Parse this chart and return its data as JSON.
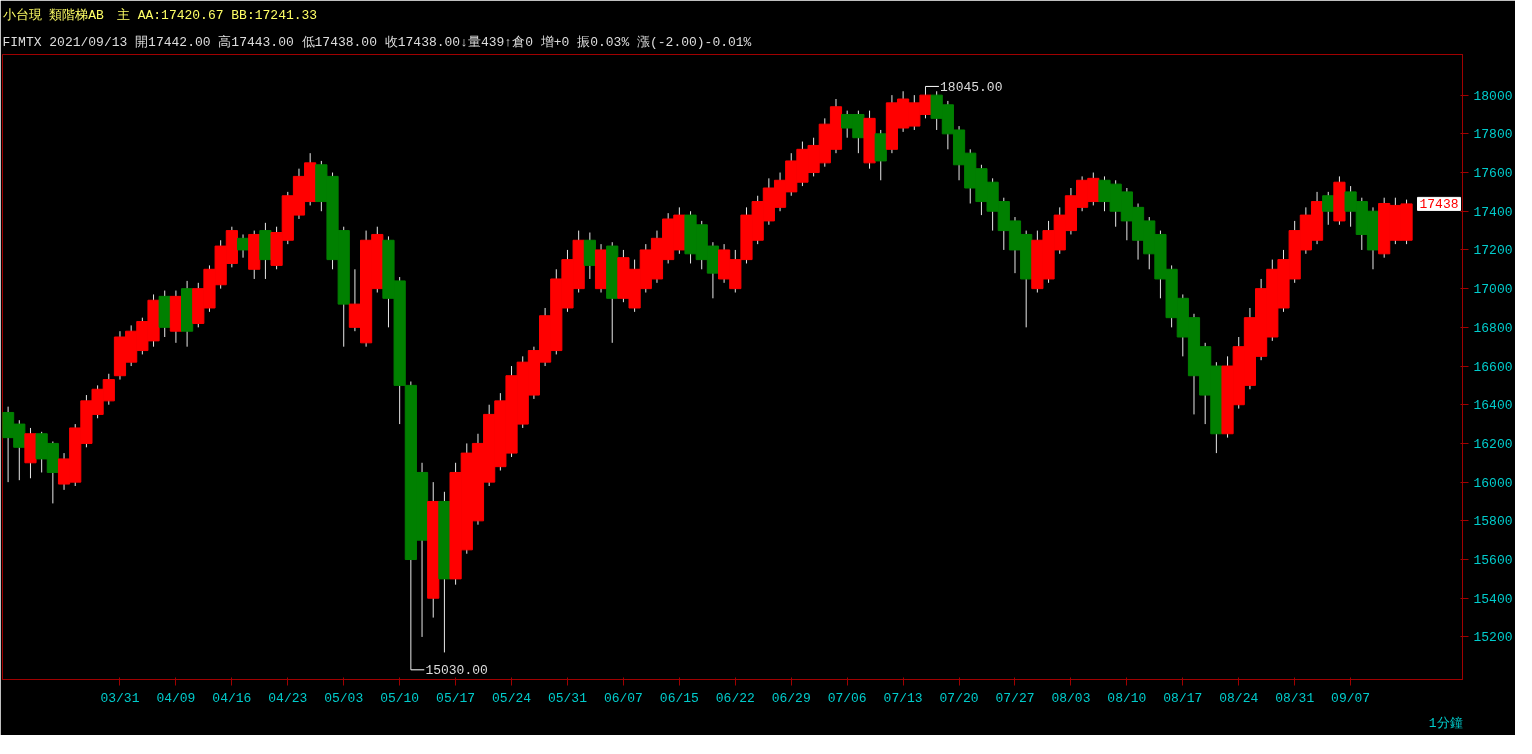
{
  "chart_data": {
    "type": "candlestick",
    "title": "小台現 類階梯AB　主 AA:17420.67 BB:17241.33",
    "subtitle": "FIMTX 2021/09/13 開17442.00 高17443.00 低17438.00 收17438.00↓量439↑倉0 增+0 振0.03% 漲(-2.00)-0.01%",
    "categories": [
      null,
      null,
      null,
      null,
      null,
      null,
      null,
      null,
      null,
      null,
      "03/31",
      null,
      null,
      null,
      null,
      "04/09",
      null,
      null,
      null,
      null,
      "04/16",
      null,
      null,
      null,
      null,
      "04/23",
      null,
      null,
      null,
      null,
      "05/03",
      null,
      null,
      null,
      null,
      "05/10",
      null,
      null,
      null,
      null,
      "05/17",
      null,
      null,
      null,
      null,
      "05/24",
      null,
      null,
      null,
      null,
      "05/31",
      null,
      null,
      null,
      null,
      "06/07",
      null,
      null,
      null,
      null,
      "06/15",
      null,
      null,
      null,
      null,
      "06/22",
      null,
      null,
      null,
      null,
      "06/29",
      null,
      null,
      null,
      null,
      "07/06",
      null,
      null,
      null,
      null,
      "07/13",
      null,
      null,
      null,
      null,
      "07/20",
      null,
      null,
      null,
      null,
      "07/27",
      null,
      null,
      null,
      null,
      "08/03",
      null,
      null,
      null,
      null,
      "08/10",
      null,
      null,
      null,
      null,
      "08/17",
      null,
      null,
      null,
      null,
      "08/24",
      null,
      null,
      null,
      null,
      "08/31",
      null,
      null,
      null,
      null,
      "09/07",
      null,
      null,
      null,
      null,
      null
    ],
    "ohlc": [
      [
        16360,
        16390,
        16000,
        16230
      ],
      [
        16300,
        16320,
        16010,
        16180
      ],
      [
        16100,
        16280,
        16020,
        16250
      ],
      [
        16250,
        16260,
        16050,
        16120
      ],
      [
        16200,
        16210,
        15890,
        16050
      ],
      [
        15990,
        16150,
        15960,
        16120
      ],
      [
        16000,
        16300,
        15980,
        16280
      ],
      [
        16200,
        16450,
        16180,
        16420
      ],
      [
        16350,
        16500,
        16330,
        16480
      ],
      [
        16420,
        16560,
        16400,
        16530
      ],
      [
        16550,
        16780,
        16530,
        16750
      ],
      [
        16620,
        16810,
        16600,
        16780
      ],
      [
        16680,
        16850,
        16660,
        16830
      ],
      [
        16730,
        16970,
        16700,
        16940
      ],
      [
        16960,
        16990,
        16750,
        16800
      ],
      [
        16780,
        16990,
        16720,
        16960
      ],
      [
        17000,
        17040,
        16700,
        16780
      ],
      [
        16820,
        17030,
        16800,
        17000
      ],
      [
        16900,
        17120,
        16880,
        17100
      ],
      [
        17020,
        17250,
        17000,
        17220
      ],
      [
        17130,
        17320,
        17110,
        17300
      ],
      [
        17260,
        17280,
        17160,
        17200
      ],
      [
        17100,
        17300,
        17050,
        17280
      ],
      [
        17300,
        17340,
        17050,
        17150
      ],
      [
        17120,
        17320,
        17100,
        17290
      ],
      [
        17250,
        17500,
        17230,
        17480
      ],
      [
        17380,
        17620,
        17360,
        17580
      ],
      [
        17450,
        17700,
        17430,
        17650
      ],
      [
        17640,
        17660,
        17400,
        17450
      ],
      [
        17580,
        17600,
        17100,
        17150
      ],
      [
        17300,
        17320,
        16700,
        16920
      ],
      [
        16800,
        17100,
        16780,
        16920
      ],
      [
        16720,
        17300,
        16700,
        17250
      ],
      [
        17000,
        17320,
        16980,
        17280
      ],
      [
        17250,
        17270,
        16800,
        16950
      ],
      [
        17040,
        17060,
        16300,
        16500
      ],
      [
        16500,
        16520,
        15030,
        15600
      ],
      [
        16050,
        16100,
        15200,
        15700
      ],
      [
        15400,
        16000,
        15300,
        15900
      ],
      [
        15900,
        15950,
        15120,
        15500
      ],
      [
        15500,
        16100,
        15470,
        16050
      ],
      [
        15650,
        16200,
        15630,
        16150
      ],
      [
        15800,
        16250,
        15780,
        16200
      ],
      [
        16000,
        16400,
        15980,
        16350
      ],
      [
        16080,
        16460,
        16060,
        16420
      ],
      [
        16150,
        16600,
        16130,
        16550
      ],
      [
        16300,
        16650,
        16280,
        16620
      ],
      [
        16450,
        16700,
        16430,
        16680
      ],
      [
        16620,
        16900,
        16600,
        16860
      ],
      [
        16680,
        17100,
        16660,
        17050
      ],
      [
        16900,
        17200,
        16880,
        17150
      ],
      [
        17000,
        17300,
        16980,
        17250
      ],
      [
        17250,
        17290,
        17050,
        17120
      ],
      [
        17000,
        17230,
        16980,
        17200
      ],
      [
        17220,
        17240,
        16720,
        16950
      ],
      [
        16950,
        17200,
        16930,
        17160
      ],
      [
        16900,
        17150,
        16880,
        17100
      ],
      [
        17000,
        17230,
        16980,
        17200
      ],
      [
        17050,
        17300,
        17030,
        17260
      ],
      [
        17150,
        17390,
        17130,
        17360
      ],
      [
        17200,
        17420,
        17180,
        17380
      ],
      [
        17380,
        17400,
        17130,
        17180
      ],
      [
        17330,
        17350,
        17100,
        17150
      ],
      [
        17220,
        17240,
        16950,
        17080
      ],
      [
        17050,
        17230,
        17030,
        17200
      ],
      [
        17000,
        17200,
        16980,
        17150
      ],
      [
        17150,
        17420,
        17130,
        17380
      ],
      [
        17250,
        17480,
        17230,
        17450
      ],
      [
        17350,
        17570,
        17330,
        17520
      ],
      [
        17420,
        17600,
        17400,
        17560
      ],
      [
        17500,
        17700,
        17480,
        17660
      ],
      [
        17550,
        17760,
        17530,
        17720
      ],
      [
        17600,
        17780,
        17580,
        17740
      ],
      [
        17650,
        17880,
        17630,
        17850
      ],
      [
        17720,
        17980,
        17700,
        17940
      ],
      [
        17900,
        17920,
        17780,
        17830
      ],
      [
        17900,
        17920,
        17700,
        17780
      ],
      [
        17650,
        17920,
        17620,
        17880
      ],
      [
        17800,
        17820,
        17560,
        17660
      ],
      [
        17720,
        18000,
        17700,
        17960
      ],
      [
        17830,
        18020,
        17810,
        17980
      ],
      [
        17840,
        18000,
        17820,
        17960
      ],
      [
        17900,
        18045,
        17880,
        18000
      ],
      [
        18000,
        18020,
        17820,
        17880
      ],
      [
        17950,
        17970,
        17720,
        17800
      ],
      [
        17820,
        17840,
        17560,
        17640
      ],
      [
        17700,
        17720,
        17440,
        17520
      ],
      [
        17620,
        17640,
        17380,
        17450
      ],
      [
        17550,
        17570,
        17300,
        17400
      ],
      [
        17450,
        17470,
        17200,
        17300
      ],
      [
        17350,
        17370,
        17080,
        17200
      ],
      [
        17280,
        17300,
        16800,
        17050
      ],
      [
        17000,
        17300,
        16980,
        17250
      ],
      [
        17050,
        17350,
        17030,
        17300
      ],
      [
        17200,
        17420,
        17180,
        17380
      ],
      [
        17300,
        17520,
        17280,
        17480
      ],
      [
        17420,
        17580,
        17400,
        17560
      ],
      [
        17450,
        17600,
        17430,
        17570
      ],
      [
        17560,
        17580,
        17400,
        17450
      ],
      [
        17540,
        17560,
        17320,
        17400
      ],
      [
        17500,
        17520,
        17250,
        17350
      ],
      [
        17420,
        17440,
        17150,
        17250
      ],
      [
        17350,
        17370,
        17100,
        17180
      ],
      [
        17280,
        17300,
        16950,
        17050
      ],
      [
        17100,
        17120,
        16800,
        16850
      ],
      [
        16950,
        16970,
        16650,
        16750
      ],
      [
        16850,
        16870,
        16350,
        16550
      ],
      [
        16700,
        16720,
        16300,
        16450
      ],
      [
        16600,
        16620,
        16150,
        16250
      ],
      [
        16250,
        16650,
        16230,
        16600
      ],
      [
        16400,
        16750,
        16380,
        16700
      ],
      [
        16500,
        16900,
        16480,
        16850
      ],
      [
        16650,
        17050,
        16630,
        17000
      ],
      [
        16750,
        17150,
        16730,
        17100
      ],
      [
        16900,
        17200,
        16880,
        17150
      ],
      [
        17050,
        17350,
        17030,
        17300
      ],
      [
        17200,
        17420,
        17180,
        17380
      ],
      [
        17250,
        17500,
        17230,
        17450
      ],
      [
        17480,
        17500,
        17330,
        17400
      ],
      [
        17350,
        17580,
        17330,
        17550
      ],
      [
        17500,
        17530,
        17320,
        17400
      ],
      [
        17450,
        17470,
        17200,
        17280
      ],
      [
        17400,
        17420,
        17100,
        17200
      ],
      [
        17180,
        17470,
        17160,
        17440
      ],
      [
        17250,
        17470,
        17230,
        17430
      ],
      [
        17250,
        17460,
        17230,
        17438
      ]
    ],
    "colors": [
      "#008000",
      "#008000",
      "#ff0000",
      "#008000",
      "#008000",
      "#ff0000",
      "#ff0000",
      "#ff0000",
      "#ff0000",
      "#ff0000",
      "#ff0000",
      "#ff0000",
      "#ff0000",
      "#ff0000",
      "#008000",
      "#ff0000",
      "#008000",
      "#ff0000",
      "#ff0000",
      "#ff0000",
      "#ff0000",
      "#008000",
      "#ff0000",
      "#008000",
      "#ff0000",
      "#ff0000",
      "#ff0000",
      "#ff0000",
      "#008000",
      "#008000",
      "#008000",
      "#ff0000",
      "#ff0000",
      "#ff0000",
      "#008000",
      "#008000",
      "#008000",
      "#008000",
      "#ff0000",
      "#008000",
      "#ff0000",
      "#ff0000",
      "#ff0000",
      "#ff0000",
      "#ff0000",
      "#ff0000",
      "#ff0000",
      "#ff0000",
      "#ff0000",
      "#ff0000",
      "#ff0000",
      "#ff0000",
      "#008000",
      "#ff0000",
      "#008000",
      "#ff0000",
      "#ff0000",
      "#ff0000",
      "#ff0000",
      "#ff0000",
      "#ff0000",
      "#008000",
      "#008000",
      "#008000",
      "#ff0000",
      "#ff0000",
      "#ff0000",
      "#ff0000",
      "#ff0000",
      "#ff0000",
      "#ff0000",
      "#ff0000",
      "#ff0000",
      "#ff0000",
      "#ff0000",
      "#008000",
      "#008000",
      "#ff0000",
      "#008000",
      "#ff0000",
      "#ff0000",
      "#ff0000",
      "#ff0000",
      "#008000",
      "#008000",
      "#008000",
      "#008000",
      "#008000",
      "#008000",
      "#008000",
      "#008000",
      "#008000",
      "#ff0000",
      "#ff0000",
      "#ff0000",
      "#ff0000",
      "#ff0000",
      "#ff0000",
      "#008000",
      "#008000",
      "#008000",
      "#008000",
      "#008000",
      "#008000",
      "#008000",
      "#008000",
      "#008000",
      "#008000",
      "#008000",
      "#ff0000",
      "#ff0000",
      "#ff0000",
      "#ff0000",
      "#ff0000",
      "#ff0000",
      "#ff0000",
      "#ff0000",
      "#ff0000",
      "#008000",
      "#ff0000",
      "#008000",
      "#008000",
      "#008000",
      "#ff0000",
      "#ff0000",
      "#ff0000"
    ],
    "ylim": [
      14980,
      18210
    ],
    "yticks": [
      15200,
      15400,
      15600,
      15800,
      16000,
      16200,
      16400,
      16600,
      16800,
      17000,
      17200,
      17400,
      17600,
      17800,
      18000
    ],
    "grid": false,
    "annotations": [
      "18045.00",
      "15030.00",
      "17438",
      "1分鐘"
    ]
  }
}
